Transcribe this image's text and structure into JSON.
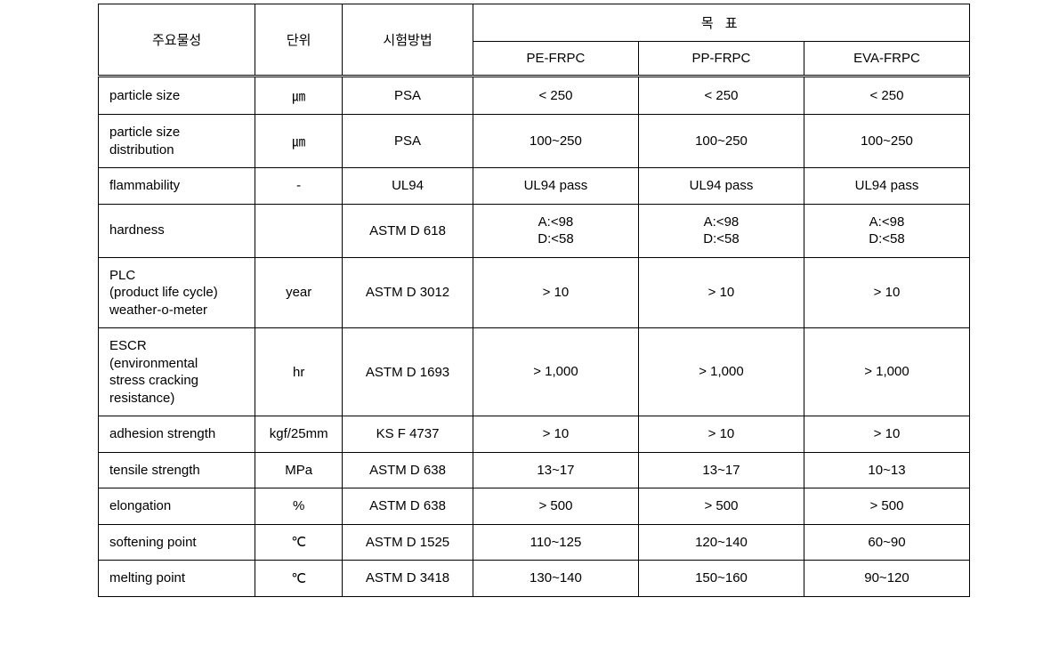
{
  "headers": {
    "property": "주요물성",
    "unit": "단위",
    "method": "시험방법",
    "target": "목   표",
    "target_pe": "PE-FRPC",
    "target_pp": "PP-FRPC",
    "target_eva": "EVA-FRPC"
  },
  "rows": [
    {
      "property": "particle size",
      "unit": "㎛",
      "method": "PSA",
      "pe": "< 250",
      "pp": "< 250",
      "eva": "< 250"
    },
    {
      "property": "particle size\ndistribution",
      "unit": "㎛",
      "method": "PSA",
      "pe": "100~250",
      "pp": "100~250",
      "eva": "100~250"
    },
    {
      "property": "flammability",
      "unit": "-",
      "method": "UL94",
      "pe": "UL94 pass",
      "pp": "UL94 pass",
      "eva": "UL94 pass"
    },
    {
      "property": "hardness",
      "unit": "",
      "method": "ASTM D 618",
      "pe": "A:<98\nD:<58",
      "pp": "A:<98\nD:<58",
      "eva": "A:<98\nD:<58"
    },
    {
      "property": "PLC\n(product life cycle)\nweather-o-meter",
      "unit": "year",
      "method": "ASTM D 3012",
      "pe": "> 10",
      "pp": "> 10",
      "eva": "> 10"
    },
    {
      "property": "ESCR\n(environmental\nstress cracking\nresistance)",
      "unit": "hr",
      "method": "ASTM D 1693",
      "pe": "> 1,000",
      "pp": "> 1,000",
      "eva": "> 1,000"
    },
    {
      "property": "adhesion strength",
      "unit": "kgf/25mm",
      "method": "KS F 4737",
      "pe": "> 10",
      "pp": "> 10",
      "eva": "> 10"
    },
    {
      "property": "tensile strength",
      "unit": "MPa",
      "method": "ASTM D 638",
      "pe": "13~17",
      "pp": "13~17",
      "eva": "10~13"
    },
    {
      "property": "elongation",
      "unit": "%",
      "method": "ASTM D 638",
      "pe": "> 500",
      "pp": "> 500",
      "eva": "> 500"
    },
    {
      "property": "softening point",
      "unit": "℃",
      "method": "ASTM D 1525",
      "pe": "110~125",
      "pp": "120~140",
      "eva": "60~90"
    },
    {
      "property": "melting point",
      "unit": "℃",
      "method": "ASTM D 3418",
      "pe": "130~140",
      "pp": "150~160",
      "eva": "90~120"
    }
  ],
  "styling": {
    "background_color": "#ffffff",
    "border_color": "#000000",
    "text_color": "#000000",
    "font_size": 15,
    "header_double_border": true
  }
}
